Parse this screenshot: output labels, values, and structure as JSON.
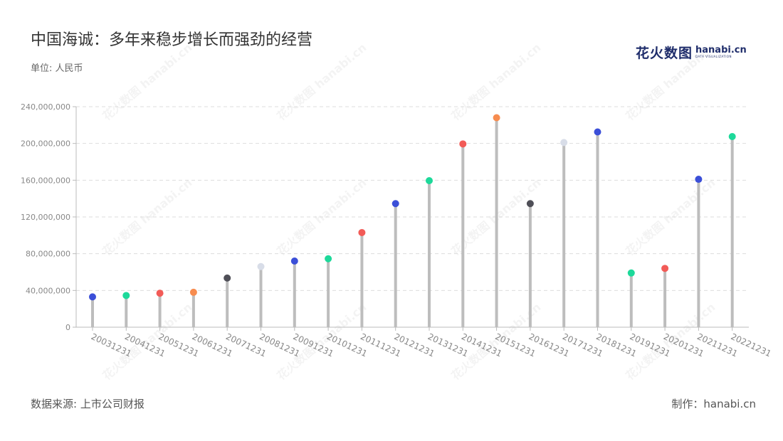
{
  "title": "中国海诚：多年来稳步增长而强劲的经营",
  "unit_label": "单位: 人民币",
  "source_label": "数据来源: 上市公司财报",
  "maker_label": "制作：hanabi.cn",
  "brand": {
    "cn": "花火数图",
    "en": "hanabi.cn",
    "sub": "DATA VISUALIZATION"
  },
  "watermark_text": "花火数图 hanabi.cn",
  "colors": {
    "stem": "#bdbdbd",
    "grid": "#dddddd",
    "axis": "#bbbbbb",
    "palette": [
      "#3b4fd8",
      "#1dd99a",
      "#f25b57",
      "#f78c4f",
      "#4f4f57",
      "#d8dde8"
    ]
  },
  "chart_data": {
    "type": "lollipop",
    "ylim": [
      0,
      240000000
    ],
    "yticks": [
      0,
      40000000,
      80000000,
      120000000,
      160000000,
      200000000,
      240000000
    ],
    "ytick_labels": [
      "0",
      "40,000,000",
      "80,000,000",
      "120,000,000",
      "160,000,000",
      "200,000,000",
      "240,000,000"
    ],
    "grid": true,
    "categories": [
      "20031231",
      "20041231",
      "20051231",
      "20061231",
      "20071231",
      "20081231",
      "20091231",
      "20101231",
      "20111231",
      "20121231",
      "20131231",
      "20141231",
      "20151231",
      "20161231",
      "20171231",
      "20181231",
      "20191231",
      "20201231",
      "20211231",
      "20221231"
    ],
    "values": [
      33000000,
      34500000,
      37000000,
      38000000,
      53500000,
      66000000,
      72000000,
      74500000,
      103000000,
      134500000,
      159500000,
      199500000,
      228000000,
      134500000,
      201000000,
      212500000,
      59000000,
      64000000,
      161000000,
      207500000
    ],
    "point_colors": [
      "#3b4fd8",
      "#1dd99a",
      "#f25b57",
      "#f78c4f",
      "#4f4f57",
      "#d8dde8",
      "#3b4fd8",
      "#1dd99a",
      "#f25b57",
      "#3b4fd8",
      "#1dd99a",
      "#f25b57",
      "#f78c4f",
      "#4f4f57",
      "#d8dde8",
      "#3b4fd8",
      "#1dd99a",
      "#f25b57",
      "#3b4fd8",
      "#1dd99a"
    ]
  }
}
